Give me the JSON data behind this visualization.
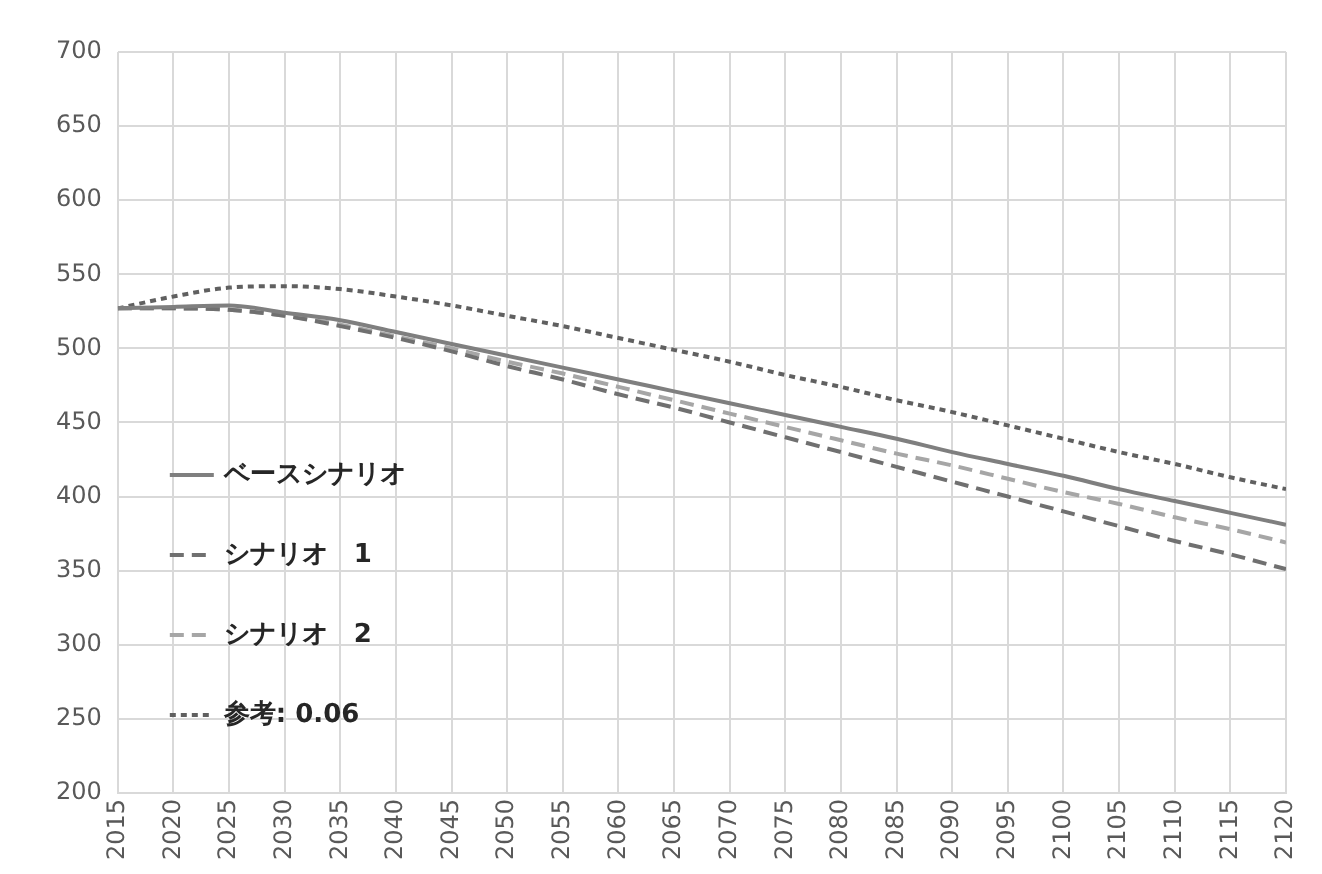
{
  "chart_data": {
    "type": "line",
    "x": [
      2015,
      2020,
      2025,
      2030,
      2035,
      2040,
      2045,
      2050,
      2055,
      2060,
      2065,
      2070,
      2075,
      2080,
      2085,
      2090,
      2095,
      2100,
      2105,
      2110,
      2115,
      2120
    ],
    "xlim": [
      2015,
      2120
    ],
    "xticks": [
      2015,
      2020,
      2025,
      2030,
      2035,
      2040,
      2045,
      2050,
      2055,
      2060,
      2065,
      2070,
      2075,
      2080,
      2085,
      2090,
      2095,
      2100,
      2105,
      2110,
      2115,
      2120
    ],
    "ylim": [
      200,
      700
    ],
    "yticks": [
      200,
      250,
      300,
      350,
      400,
      450,
      500,
      550,
      600,
      650,
      700
    ],
    "grid": true,
    "legend": "bottom left",
    "marker": "none",
    "series": [
      {
        "name": "ベースシナリオ",
        "color": "#7f7f7f",
        "line_style": "solid",
        "values": [
          527,
          528,
          529,
          524,
          519,
          511,
          503,
          495,
          487,
          479,
          471,
          463,
          455,
          447,
          439,
          430,
          422,
          414,
          405,
          397,
          389,
          381
        ]
      },
      {
        "name": "シナリオ　1",
        "color": "#707070",
        "line_style": "dashed",
        "values": [
          527,
          527,
          526,
          522,
          515,
          507,
          498,
          488,
          479,
          469,
          460,
          450,
          440,
          430,
          420,
          410,
          400,
          390,
          380,
          370,
          361,
          351
        ]
      },
      {
        "name": "シナリオ　2",
        "color": "#a6a6a6",
        "line_style": "dashed",
        "values": [
          527,
          527,
          526,
          522,
          516,
          508,
          500,
          491,
          483,
          474,
          465,
          456,
          447,
          438,
          429,
          421,
          412,
          403,
          395,
          386,
          378,
          369
        ]
      },
      {
        "name": "参考: 0.06",
        "color": "#606060",
        "line_style": "dotted",
        "values": [
          527,
          535,
          541,
          542,
          540,
          535,
          529,
          522,
          515,
          507,
          499,
          491,
          482,
          474,
          465,
          457,
          448,
          439,
          430,
          422,
          413,
          405
        ]
      }
    ]
  }
}
